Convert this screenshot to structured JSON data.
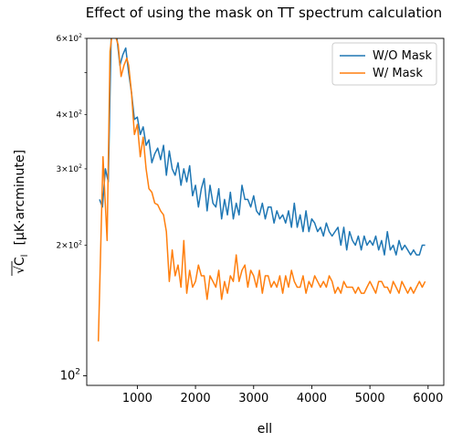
{
  "chart_data": {
    "type": "line",
    "title": "Effect of using the mask on TT spectrum calculation",
    "xlabel": "ell",
    "ylabel": "√C_l  [μK·arcminute]",
    "ylabel_parts": {
      "sqrt_symbol": "√",
      "sqrt_arg": "C",
      "sqrt_sub": "l",
      "units": "[μK·arcminute]"
    },
    "xscale": "linear",
    "yscale": "log",
    "xlim": [
      130,
      6270
    ],
    "ylim": [
      95,
      600
    ],
    "xticks": [
      1000,
      2000,
      3000,
      4000,
      5000,
      6000
    ],
    "xtick_labels": [
      "1000",
      "2000",
      "3000",
      "4000",
      "5000",
      "6000"
    ],
    "yticks_major": [
      {
        "value": 100,
        "base": "10",
        "exp": "2"
      }
    ],
    "yticks_minor_labeled": [
      {
        "value": 200,
        "mant": "2",
        "base": "10",
        "exp": "2"
      },
      {
        "value": 300,
        "mant": "3",
        "base": "10",
        "exp": "2"
      },
      {
        "value": 400,
        "mant": "4",
        "base": "10",
        "exp": "2"
      },
      {
        "value": 600,
        "mant": "6",
        "base": "10",
        "exp": "2"
      }
    ],
    "yticks_minor_unlabeled": [
      500
    ],
    "grid": false,
    "legend_position": "upper right",
    "series": [
      {
        "name": "W/O Mask",
        "color": "#1f77b4",
        "x": [
          350,
          400,
          450,
          500,
          550,
          600,
          650,
          700,
          750,
          800,
          850,
          900,
          950,
          1000,
          1050,
          1100,
          1150,
          1200,
          1250,
          1300,
          1350,
          1400,
          1450,
          1500,
          1550,
          1600,
          1650,
          1700,
          1750,
          1800,
          1850,
          1900,
          1950,
          2000,
          2050,
          2100,
          2150,
          2200,
          2250,
          2300,
          2350,
          2400,
          2450,
          2500,
          2550,
          2600,
          2650,
          2700,
          2750,
          2800,
          2850,
          2900,
          2950,
          3000,
          3050,
          3100,
          3150,
          3200,
          3250,
          3300,
          3350,
          3400,
          3450,
          3500,
          3550,
          3600,
          3650,
          3700,
          3750,
          3800,
          3850,
          3900,
          3950,
          4000,
          4050,
          4100,
          4150,
          4200,
          4250,
          4300,
          4350,
          4400,
          4450,
          4500,
          4550,
          4600,
          4650,
          4700,
          4750,
          4800,
          4850,
          4900,
          4950,
          5000,
          5050,
          5100,
          5150,
          5200,
          5250,
          5300,
          5350,
          5400,
          5450,
          5500,
          5550,
          5600,
          5650,
          5700,
          5750,
          5800,
          5850,
          5900,
          5950
        ],
        "y": [
          255,
          245,
          300,
          280,
          600,
          620,
          600,
          520,
          550,
          570,
          500,
          450,
          390,
          395,
          360,
          375,
          340,
          350,
          310,
          325,
          335,
          315,
          340,
          290,
          330,
          300,
          290,
          310,
          275,
          300,
          280,
          305,
          260,
          275,
          245,
          270,
          285,
          240,
          275,
          250,
          245,
          270,
          230,
          255,
          235,
          265,
          230,
          250,
          235,
          275,
          255,
          255,
          245,
          260,
          240,
          235,
          250,
          230,
          245,
          245,
          225,
          240,
          230,
          235,
          225,
          240,
          220,
          250,
          220,
          235,
          215,
          240,
          215,
          230,
          225,
          215,
          220,
          210,
          225,
          215,
          210,
          215,
          220,
          200,
          220,
          195,
          215,
          205,
          200,
          210,
          195,
          210,
          200,
          205,
          200,
          210,
          195,
          205,
          190,
          215,
          195,
          200,
          190,
          205,
          195,
          200,
          195,
          190,
          195,
          190,
          190,
          200,
          200
        ]
      },
      {
        "name": "W/ Mask",
        "color": "#ff7f0e",
        "x": [
          330,
          410,
          480,
          530,
          570,
          620,
          670,
          720,
          770,
          820,
          850,
          900,
          950,
          1000,
          1050,
          1100,
          1150,
          1200,
          1250,
          1300,
          1350,
          1400,
          1450,
          1500,
          1550,
          1600,
          1650,
          1700,
          1750,
          1800,
          1850,
          1900,
          1950,
          2000,
          2050,
          2100,
          2150,
          2200,
          2250,
          2300,
          2350,
          2400,
          2450,
          2500,
          2550,
          2600,
          2650,
          2700,
          2750,
          2800,
          2850,
          2900,
          2950,
          3000,
          3050,
          3100,
          3150,
          3200,
          3250,
          3300,
          3350,
          3400,
          3450,
          3500,
          3550,
          3600,
          3650,
          3700,
          3750,
          3800,
          3850,
          3900,
          3950,
          4000,
          4050,
          4100,
          4150,
          4200,
          4250,
          4300,
          4350,
          4400,
          4450,
          4500,
          4550,
          4600,
          4650,
          4700,
          4750,
          4800,
          4850,
          4900,
          4950,
          5000,
          5050,
          5100,
          5150,
          5200,
          5250,
          5300,
          5350,
          5400,
          5450,
          5500,
          5550,
          5600,
          5650,
          5700,
          5750,
          5800,
          5850,
          5900,
          5950
        ],
        "y": [
          120,
          320,
          205,
          560,
          620,
          610,
          580,
          490,
          520,
          540,
          520,
          450,
          360,
          380,
          320,
          355,
          300,
          270,
          265,
          250,
          248,
          240,
          235,
          215,
          165,
          195,
          170,
          180,
          160,
          205,
          155,
          175,
          160,
          165,
          180,
          170,
          170,
          150,
          170,
          165,
          160,
          175,
          150,
          165,
          155,
          170,
          165,
          190,
          165,
          175,
          180,
          160,
          175,
          170,
          160,
          175,
          155,
          170,
          170,
          160,
          165,
          160,
          170,
          155,
          170,
          160,
          175,
          165,
          160,
          160,
          170,
          155,
          165,
          160,
          170,
          165,
          160,
          165,
          160,
          170,
          165,
          155,
          160,
          155,
          165,
          160,
          160,
          160,
          155,
          160,
          155,
          155,
          160,
          165,
          160,
          155,
          165,
          165,
          160,
          160,
          155,
          165,
          160,
          155,
          165,
          160,
          155,
          160,
          155,
          160,
          165,
          160,
          165
        ]
      }
    ]
  }
}
